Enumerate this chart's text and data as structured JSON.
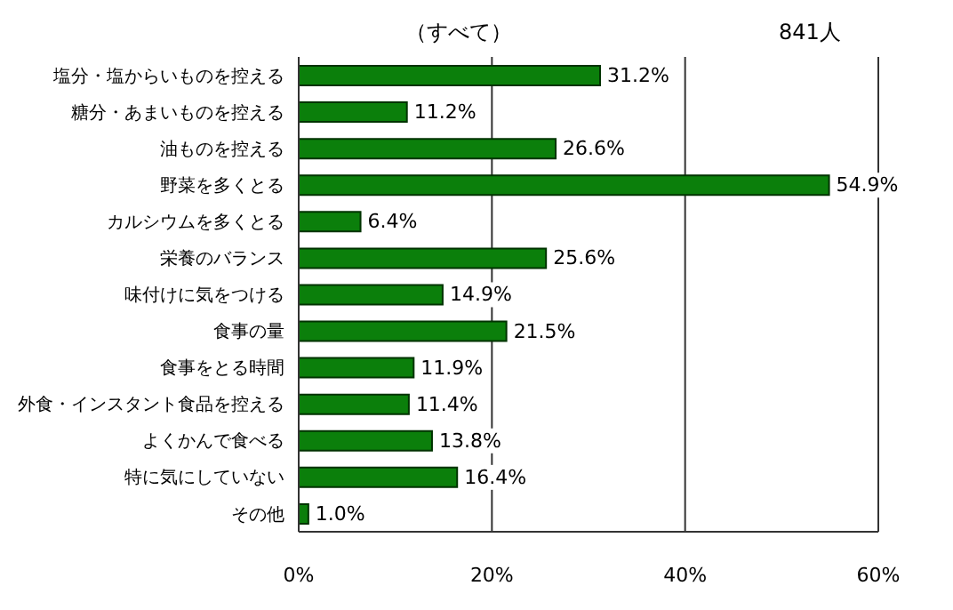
{
  "chart_data": {
    "type": "bar",
    "orientation": "horizontal",
    "title": "（すべて）",
    "annotations": [
      "841人"
    ],
    "categories": [
      "塩分・塩からいものを控える",
      "糖分・あまいものを控える",
      "油ものを控える",
      "野菜を多くとる",
      "カルシウムを多くとる",
      "栄養のバランス",
      "味付けに気をつける",
      "食事の量",
      "食事をとる時間",
      "外食・インスタント食品を控える",
      "よくかんで食べる",
      "特に気にしていない",
      "その他"
    ],
    "values": [
      31.2,
      11.2,
      26.6,
      54.9,
      6.4,
      25.6,
      14.9,
      21.5,
      11.9,
      11.4,
      13.8,
      16.4,
      1.0
    ],
    "value_labels": [
      "31.2%",
      "11.2%",
      "26.6%",
      "54.9%",
      "6.4%",
      "25.6%",
      "14.9%",
      "21.5%",
      "11.9%",
      "11.4%",
      "13.8%",
      "16.4%",
      "1.0%"
    ],
    "color": "#0b7f0b",
    "xlim": [
      0,
      60
    ],
    "xticks": [
      {
        "value": 0,
        "label": "0%"
      },
      {
        "value": 20,
        "label": "20%"
      },
      {
        "value": 40,
        "label": "40%"
      },
      {
        "value": 60,
        "label": "60%"
      }
    ],
    "grid": "x"
  }
}
